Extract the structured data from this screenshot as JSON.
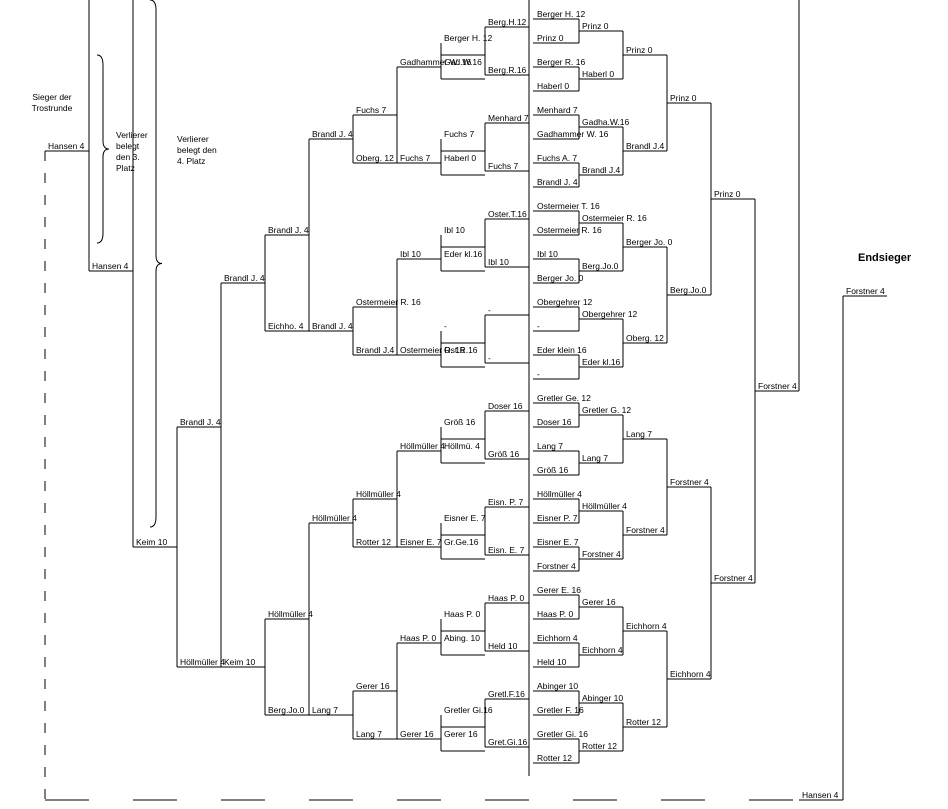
{
  "notes": {
    "consolation_winner": "Sieger der Trostrunde",
    "third_place": "Verlierer belegt den 3. Platz",
    "fourth_place": "Verlierer belegt den 4. Platz",
    "champion_title": "Endsieger"
  },
  "champion": "Forstner 4",
  "right_bracket": {
    "round1": [
      "Berger H. 12",
      "Prinz 0",
      "Berger R. 16",
      "Haberl 0",
      "Menhard 7",
      "Gadhammer W. 16",
      "Fuchs A. 7",
      "Brandl J. 4",
      "Ostermeier T. 16",
      "Ostermeier R. 16",
      "Ibl 10",
      "Berger Jo. 0",
      "Obergehrer 12",
      "-",
      "Eder klein 16",
      "-",
      "Gretler Ge. 12",
      "Doser 16",
      "Lang 7",
      "Größ 16",
      "Höllmüller 4",
      "Eisner P. 7",
      "Eisner E. 7",
      "Forstner 4",
      "Gerer E. 16",
      "Haas P. 0",
      "Eichhorn 4",
      "Held 10",
      "Abinger 10",
      "Gretler F. 16",
      "Gretler Gi. 16",
      "Rotter 12"
    ],
    "round2": [
      "Prinz 0",
      "Haberl 0",
      "Gadha.W.16",
      "Brandl J.4",
      "Ostermeier R. 16",
      "Berg.Jo.0",
      "Obergehrer 12",
      "Eder kl.16",
      "Gretler G. 12",
      "Lang 7",
      "Höllmüller 4",
      "Forstner 4",
      "Gerer 16",
      "Eichhorn 4",
      "Abinger 10",
      "Rotter 12"
    ],
    "round3": [
      "Prinz 0",
      "Brandl J.4",
      "Berger Jo. 0",
      "Oberg. 12",
      "Lang 7",
      "Forstner 4",
      "Eichhorn 4",
      "Rotter 12"
    ],
    "round4": [
      "Prinz 0",
      "Berg.Jo.0",
      "Forstner 4",
      "Eichhorn 4"
    ],
    "round5": [
      "Prinz 0",
      "Forstner 4"
    ],
    "final": "Forstner 4"
  },
  "left_bracket": {
    "round1": [
      "Berg.H.12",
      "Berg.R.16",
      "Menhard 7",
      "Fuchs 7",
      "Oster.T.16",
      "Ibl 10",
      "-",
      "-",
      "Doser 16",
      "Größ 16",
      "Eisn. P. 7",
      "Eisn. E. 7",
      "Haas P. 0",
      "Held 10",
      "Gretl.F.16",
      "Gret.Gi.16"
    ],
    "round1_partners": [
      "Gad.W.16",
      "Haberl 0",
      "Ibl 10",
      "Eder kl.16",
      "-",
      "Ost.R.16",
      "Größ 16",
      "Höllmü. 4",
      "Eisner E. 7",
      "Gr.Ge.16",
      "Haas P. 0",
      "Abing. 10",
      "Gretler Gi.16",
      "Gerer 16"
    ],
    "round2": [
      "Berger H. 12",
      "Gad.W.16",
      "Fuchs 7",
      "Haberl 0",
      "Ibl 10",
      "Eder kl.16",
      "-",
      "Ost.R.16",
      "Größ 16",
      "Höllmü. 4",
      "Eisner E. 7",
      "Gr.Ge.16",
      "Haas P. 0",
      "Abing. 10",
      "Gretler Gi.16",
      "Gerer 16"
    ],
    "round3": [
      "Gadhammer W. 16",
      "Fuchs 7",
      "Ibl 10",
      "Ostermeier R. 16",
      "Höllmüller 4",
      "Eisner E. 7",
      "Haas P. 0",
      "Gerer 16"
    ],
    "round4": [
      "Fuchs 7",
      "Oberg. 12",
      "Ostermeier R. 16",
      "Brandl J.4",
      "Höllmüller 4",
      "Rotter 12",
      "Gerer 16",
      "Lang 7"
    ],
    "round5": [
      "Brandl J. 4",
      "Eichho. 4",
      "Höllmüller 4",
      "Berg.Jo.0"
    ],
    "round6": [
      "Brandl J. 4",
      "Brandl J. 4",
      "Höllmüller 4",
      "Lang 7"
    ],
    "round7": [
      "Brandl J. 4",
      "Keim 10"
    ],
    "round8": [
      "Brandl J. 4",
      "Höllmüller 4"
    ],
    "round9": [
      "Keim 10",
      "Hansen 4"
    ],
    "consolation": [
      "Hansen 4",
      "Hansen 4"
    ],
    "bottom": "Hansen 4"
  }
}
